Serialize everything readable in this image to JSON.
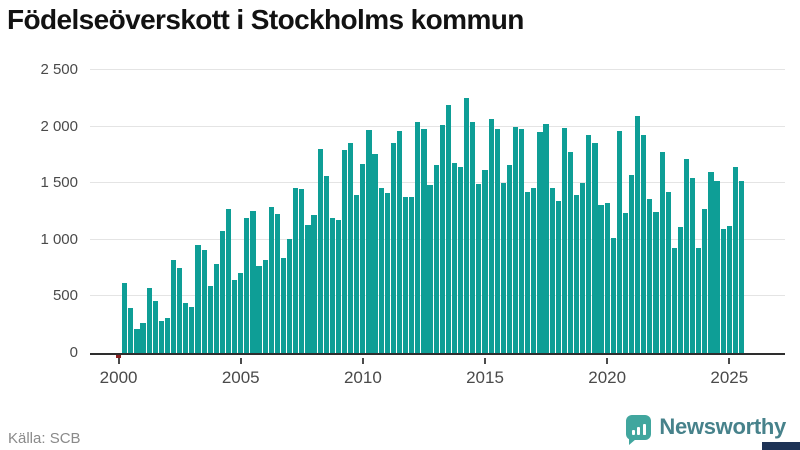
{
  "title": "Födelseöverskott i Stockholms kommun",
  "source": "Källa: SCB",
  "branding": {
    "name": "Newsworthy"
  },
  "colors": {
    "bar": "#0e9e96",
    "bar_negative": "#881f1f",
    "grid": "#e4e4e4",
    "axis": "#2e2e2e",
    "title": "#121212",
    "brand_icon": "#41a69e",
    "brand_text": "#47828b",
    "corner": "#1e3356"
  },
  "chart_data": {
    "type": "bar",
    "title": "Födelseöverskott i Stockholms kommun",
    "frequency": "quarterly",
    "start_period": "2000Q1",
    "end_period": "2025Q3",
    "values": [
      -45,
      620,
      400,
      215,
      265,
      575,
      460,
      280,
      310,
      825,
      755,
      440,
      410,
      955,
      910,
      590,
      785,
      1080,
      1275,
      645,
      705,
      1190,
      1255,
      770,
      820,
      1290,
      1230,
      835,
      1010,
      1460,
      1445,
      1130,
      1220,
      1800,
      1565,
      1190,
      1175,
      1795,
      1855,
      1395,
      1670,
      1970,
      1760,
      1455,
      1410,
      1855,
      1960,
      1380,
      1380,
      2045,
      1980,
      1485,
      1660,
      2015,
      2195,
      1675,
      1640,
      2250,
      2045,
      1490,
      1620,
      2070,
      1980,
      1505,
      1660,
      2000,
      1980,
      1420,
      1455,
      1950,
      2020,
      1455,
      1345,
      1990,
      1780,
      1395,
      1505,
      1930,
      1855,
      1310,
      1325,
      1015,
      1960,
      1235,
      1575,
      2090,
      1925,
      1360,
      1250,
      1780,
      1425,
      930,
      1110,
      1715,
      1550,
      930,
      1275,
      1600,
      1520,
      1095,
      1125,
      1640,
      1520
    ],
    "x_ticks": {
      "labels": [
        "2000",
        "2005",
        "2010",
        "2015",
        "2020",
        "2025"
      ],
      "quarter_indices": [
        0,
        20,
        40,
        60,
        80,
        100
      ]
    },
    "y_ticks": {
      "labels": [
        "0",
        "500",
        "1 000",
        "1 500",
        "2 000",
        "2 500"
      ],
      "values": [
        0,
        500,
        1000,
        1500,
        2000,
        2500
      ]
    },
    "ylim": [
      -60,
      2500
    ],
    "grid": true,
    "legend": "none"
  }
}
